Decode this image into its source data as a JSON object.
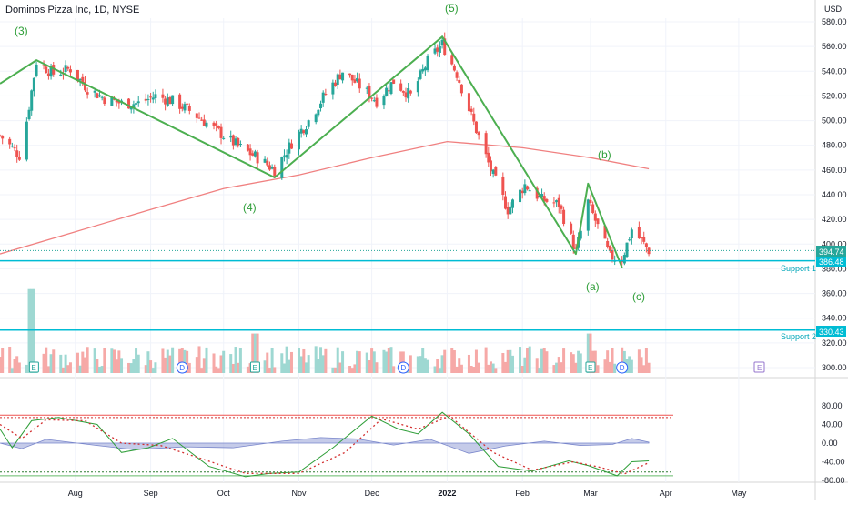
{
  "header": {
    "title": "Dominos Pizza Inc, 1D, NYSE",
    "currency": "USD"
  },
  "price_axis": {
    "ticks": [
      580,
      560,
      540,
      520,
      500,
      480,
      460,
      440,
      420,
      400,
      380,
      360,
      340,
      320,
      300
    ]
  },
  "osc_axis": {
    "ticks": [
      "80.00",
      "40.00",
      "0.00",
      "-40.00",
      "-80.00"
    ]
  },
  "time_axis": {
    "labels": [
      "Aug",
      "Sep",
      "Oct",
      "Nov",
      "Dec",
      "2022",
      "Feb",
      "Mar",
      "Apr",
      "May"
    ]
  },
  "price_badges": {
    "last": "394.74",
    "support1": "386.48",
    "support2": "330.43"
  },
  "labels": {
    "support1": "Support 1",
    "support2": "Support 2"
  },
  "wave_labels": {
    "w3": "(3)",
    "w4": "(4)",
    "w5": "(5)",
    "a": "(a)",
    "b": "(b)",
    "c": "(c)"
  },
  "event_badges": {
    "earnings": "E",
    "dividend": "D"
  },
  "colors": {
    "up": "#26a69a",
    "down": "#ef5350",
    "ma": "#f08080",
    "wave": "#4caf50",
    "support": "#00bcd4",
    "osc_fill": "#9fa8da",
    "osc_signal": "#d32f2f"
  },
  "chart_data": {
    "type": "candlestick",
    "symbol": "Dominos Pizza Inc",
    "interval": "1D",
    "exchange": "NYSE",
    "price_ylim": [
      300,
      585
    ],
    "price_path": [
      {
        "x": "2021-07-01",
        "y": 488
      },
      {
        "x": "2021-07-09",
        "y": 472
      },
      {
        "x": "2021-07-12",
        "y": 500
      },
      {
        "x": "2021-07-16",
        "y": 548
      },
      {
        "x": "2021-07-23",
        "y": 538
      },
      {
        "x": "2021-07-30",
        "y": 542
      },
      {
        "x": "2021-08-06",
        "y": 526
      },
      {
        "x": "2021-08-13",
        "y": 518
      },
      {
        "x": "2021-08-20",
        "y": 514
      },
      {
        "x": "2021-08-27",
        "y": 514
      },
      {
        "x": "2021-09-03",
        "y": 520
      },
      {
        "x": "2021-09-10",
        "y": 516
      },
      {
        "x": "2021-09-17",
        "y": 508
      },
      {
        "x": "2021-09-24",
        "y": 498
      },
      {
        "x": "2021-10-01",
        "y": 488
      },
      {
        "x": "2021-10-08",
        "y": 478
      },
      {
        "x": "2021-10-15",
        "y": 470
      },
      {
        "x": "2021-10-22",
        "y": 460
      },
      {
        "x": "2021-10-29",
        "y": 482
      },
      {
        "x": "2021-11-05",
        "y": 500
      },
      {
        "x": "2021-11-12",
        "y": 522
      },
      {
        "x": "2021-11-19",
        "y": 540
      },
      {
        "x": "2021-11-26",
        "y": 528
      },
      {
        "x": "2021-12-03",
        "y": 516
      },
      {
        "x": "2021-12-10",
        "y": 532
      },
      {
        "x": "2021-12-17",
        "y": 520
      },
      {
        "x": "2021-12-24",
        "y": 548
      },
      {
        "x": "2021-12-30",
        "y": 562
      },
      {
        "x": "2022-01-05",
        "y": 538
      },
      {
        "x": "2022-01-12",
        "y": 498
      },
      {
        "x": "2022-01-19",
        "y": 460
      },
      {
        "x": "2022-01-26",
        "y": 428
      },
      {
        "x": "2022-02-02",
        "y": 448
      },
      {
        "x": "2022-02-09",
        "y": 436
      },
      {
        "x": "2022-02-16",
        "y": 432
      },
      {
        "x": "2022-02-23",
        "y": 394
      },
      {
        "x": "2022-02-28",
        "y": 434
      },
      {
        "x": "2022-03-04",
        "y": 414
      },
      {
        "x": "2022-03-09",
        "y": 390
      },
      {
        "x": "2022-03-14",
        "y": 388
      },
      {
        "x": "2022-03-18",
        "y": 412
      },
      {
        "x": "2022-03-23",
        "y": 400
      },
      {
        "x": "2022-03-25",
        "y": 394.74
      }
    ],
    "ma200": [
      {
        "x": "2021-07-01",
        "y": 392
      },
      {
        "x": "2021-08-01",
        "y": 410
      },
      {
        "x": "2021-09-01",
        "y": 428
      },
      {
        "x": "2021-10-01",
        "y": 445
      },
      {
        "x": "2021-11-01",
        "y": 456
      },
      {
        "x": "2021-12-01",
        "y": 470
      },
      {
        "x": "2022-01-01",
        "y": 483
      },
      {
        "x": "2022-02-01",
        "y": 478
      },
      {
        "x": "2022-03-01",
        "y": 470
      },
      {
        "x": "2022-03-25",
        "y": 461
      }
    ],
    "wave_lines": [
      {
        "x": "2021-07-01",
        "y": 530
      },
      {
        "x": "2021-07-16",
        "y": 549
      },
      {
        "x": "2021-10-22",
        "y": 454
      },
      {
        "x": "2021-12-30",
        "y": 568
      },
      {
        "x": "2022-02-23",
        "y": 392
      },
      {
        "x": "2022-02-28",
        "y": 449
      },
      {
        "x": "2022-03-14",
        "y": 381
      }
    ],
    "support_levels": [
      {
        "name": "Support 1",
        "value": 386.48
      },
      {
        "name": "Support 2",
        "value": 330.43
      }
    ],
    "last_price": 394.74,
    "volume_spikes": [
      {
        "x": "2021-07-14",
        "y": 368
      },
      {
        "x": "2021-10-14",
        "y": 332
      },
      {
        "x": "2022-02-28",
        "y": 332
      }
    ],
    "events": [
      {
        "type": "E",
        "x": "2021-07-15"
      },
      {
        "type": "D",
        "x": "2021-09-14"
      },
      {
        "type": "E",
        "x": "2021-10-14"
      },
      {
        "type": "D",
        "x": "2021-12-14"
      },
      {
        "type": "E",
        "x": "2022-03-01"
      },
      {
        "type": "D",
        "x": "2022-03-14"
      }
    ],
    "oscillator": {
      "ylim": [
        -80,
        80
      ],
      "upper_band": 60,
      "upper_dotted": 55,
      "lower_dotted": -62,
      "lower_band": -70,
      "main": [
        {
          "x": "2021-07-01",
          "y": 30
        },
        {
          "x": "2021-07-06",
          "y": -10
        },
        {
          "x": "2021-07-14",
          "y": 48
        },
        {
          "x": "2021-07-25",
          "y": 55
        },
        {
          "x": "2021-08-10",
          "y": 40
        },
        {
          "x": "2021-08-20",
          "y": -20
        },
        {
          "x": "2021-08-31",
          "y": -10
        },
        {
          "x": "2021-09-10",
          "y": 10
        },
        {
          "x": "2021-09-25",
          "y": -50
        },
        {
          "x": "2021-10-10",
          "y": -72
        },
        {
          "x": "2021-10-20",
          "y": -65
        },
        {
          "x": "2021-11-01",
          "y": -62
        },
        {
          "x": "2021-11-15",
          "y": -10
        },
        {
          "x": "2021-12-01",
          "y": 58
        },
        {
          "x": "2021-12-12",
          "y": 30
        },
        {
          "x": "2021-12-20",
          "y": 20
        },
        {
          "x": "2021-12-30",
          "y": 66
        },
        {
          "x": "2022-01-10",
          "y": 20
        },
        {
          "x": "2022-01-22",
          "y": -50
        },
        {
          "x": "2022-02-05",
          "y": -60
        },
        {
          "x": "2022-02-20",
          "y": -38
        },
        {
          "x": "2022-02-28",
          "y": -48
        },
        {
          "x": "2022-03-12",
          "y": -70
        },
        {
          "x": "2022-03-18",
          "y": -40
        },
        {
          "x": "2022-03-25",
          "y": -38
        }
      ],
      "signal": [
        {
          "x": "2021-07-01",
          "y": 40
        },
        {
          "x": "2021-07-10",
          "y": 10
        },
        {
          "x": "2021-07-20",
          "y": 50
        },
        {
          "x": "2021-08-05",
          "y": 48
        },
        {
          "x": "2021-08-20",
          "y": 0
        },
        {
          "x": "2021-09-05",
          "y": -5
        },
        {
          "x": "2021-09-20",
          "y": -30
        },
        {
          "x": "2021-10-10",
          "y": -65
        },
        {
          "x": "2021-11-01",
          "y": -65
        },
        {
          "x": "2021-11-20",
          "y": -20
        },
        {
          "x": "2021-12-05",
          "y": 52
        },
        {
          "x": "2021-12-20",
          "y": 30
        },
        {
          "x": "2022-01-02",
          "y": 58
        },
        {
          "x": "2022-01-20",
          "y": -20
        },
        {
          "x": "2022-02-05",
          "y": -58
        },
        {
          "x": "2022-02-22",
          "y": -40
        },
        {
          "x": "2022-03-05",
          "y": -52
        },
        {
          "x": "2022-03-15",
          "y": -66
        },
        {
          "x": "2022-03-25",
          "y": -42
        }
      ],
      "histogram": [
        {
          "x": "2021-07-01",
          "y": 0
        },
        {
          "x": "2021-07-10",
          "y": -12
        },
        {
          "x": "2021-07-20",
          "y": 8
        },
        {
          "x": "2021-08-10",
          "y": -5
        },
        {
          "x": "2021-08-25",
          "y": -14
        },
        {
          "x": "2021-09-15",
          "y": -8
        },
        {
          "x": "2021-10-05",
          "y": -10
        },
        {
          "x": "2021-10-25",
          "y": 4
        },
        {
          "x": "2021-11-10",
          "y": 12
        },
        {
          "x": "2021-11-25",
          "y": 9
        },
        {
          "x": "2021-12-10",
          "y": -4
        },
        {
          "x": "2021-12-25",
          "y": 8
        },
        {
          "x": "2022-01-10",
          "y": -22
        },
        {
          "x": "2022-01-25",
          "y": -6
        },
        {
          "x": "2022-02-10",
          "y": 4
        },
        {
          "x": "2022-02-25",
          "y": -5
        },
        {
          "x": "2022-03-10",
          "y": -3
        },
        {
          "x": "2022-03-18",
          "y": 10
        },
        {
          "x": "2022-03-25",
          "y": 2
        }
      ]
    }
  }
}
